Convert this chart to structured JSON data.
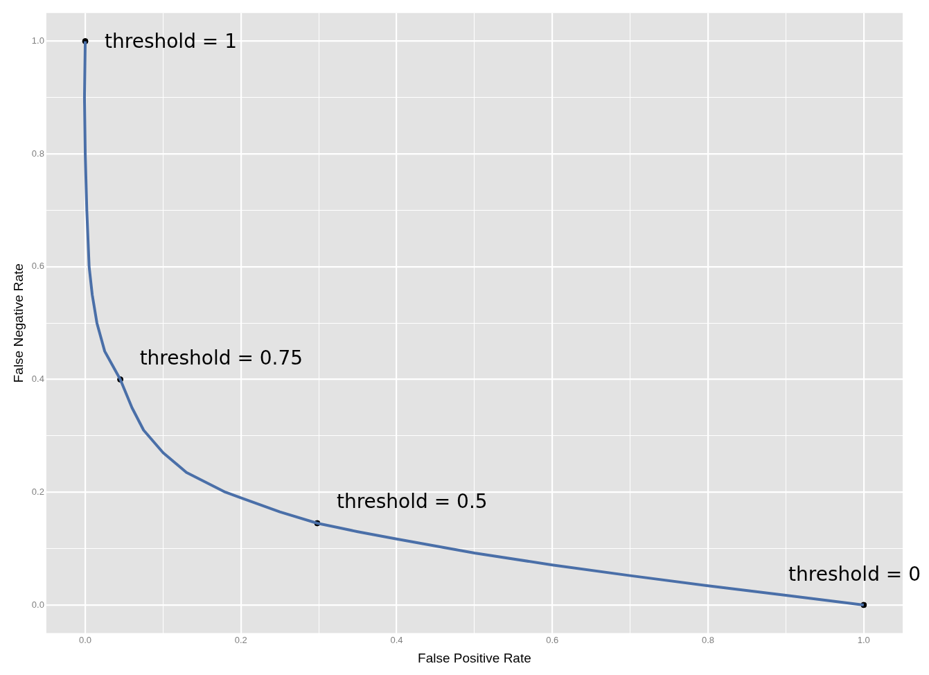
{
  "chart_data": {
    "type": "line",
    "xlabel": "False Positive Rate",
    "ylabel": "False Negative Rate",
    "series": [
      {
        "color": "#4a6fa8",
        "marker": "none",
        "x": [
          0,
          -0.001,
          0,
          0.002,
          0.005,
          0.009,
          0.015,
          0.025,
          0.045,
          0.06,
          0.075,
          0.1,
          0.13,
          0.18,
          0.2,
          0.25,
          0.298,
          0.35,
          0.4,
          0.5,
          0.6,
          0.7,
          0.8,
          0.9,
          1
        ],
        "values": [
          1,
          0.9,
          0.8,
          0.7,
          0.6,
          0.55,
          0.5,
          0.45,
          0.4,
          0.35,
          0.31,
          0.27,
          0.235,
          0.2,
          0.19,
          0.165,
          0.145,
          0.13,
          0.117,
          0.092,
          0.071,
          0.052,
          0.034,
          0.017,
          0
        ]
      },
      {
        "type": "scatter",
        "color": "#000000",
        "marker": "circle",
        "x": [
          0,
          0.045,
          0.298,
          1
        ],
        "values": [
          1,
          0.4,
          0.145,
          0
        ]
      }
    ],
    "xlim": [
      -0.05,
      1.05
    ],
    "ylim": [
      -0.05,
      1.05
    ],
    "xticks": [
      {
        "value": 0,
        "label": "0.0"
      },
      {
        "value": 0.1,
        "label": null
      },
      0.2,
      {
        "value": 0.3,
        "label": null
      },
      0.4,
      {
        "value": 0.5,
        "label": null
      },
      0.6,
      {
        "value": 0.7,
        "label": null
      },
      0.8,
      {
        "value": 0.9,
        "label": null
      },
      {
        "value": 1,
        "label": "1.0"
      }
    ],
    "yticks": [
      {
        "value": 0,
        "label": "0.0"
      },
      {
        "value": 0.1,
        "label": null
      },
      0.2,
      {
        "value": 0.3,
        "label": null
      },
      0.4,
      {
        "value": 0.5,
        "label": null
      },
      0.6,
      {
        "value": 0.7,
        "label": null
      },
      0.8,
      {
        "value": 0.9,
        "label": null
      },
      {
        "value": 1,
        "label": "1.0"
      }
    ],
    "grid": true,
    "legend": false,
    "annotations": [
      {
        "text": "threshold = 1",
        "x": 0,
        "y": 1
      },
      {
        "text": "threshold = 0.75",
        "x": 0.045,
        "y": 0.4
      },
      {
        "text": "threshold = 0.5",
        "x": 0.298,
        "y": 0.145
      },
      {
        "text": "threshold = 0",
        "x": 1,
        "y": 0
      }
    ]
  }
}
